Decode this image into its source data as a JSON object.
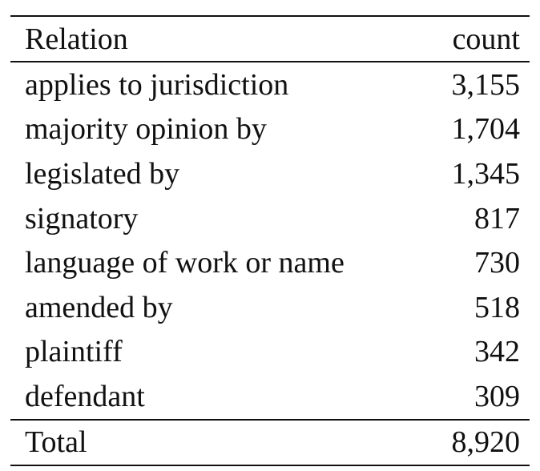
{
  "table": {
    "headers": [
      "Relation",
      "count"
    ],
    "rows": [
      [
        "applies to jurisdiction",
        "3,155"
      ],
      [
        "majority opinion by",
        "1,704"
      ],
      [
        "legislated by",
        "1,345"
      ],
      [
        "signatory",
        "817"
      ],
      [
        "language of work or name",
        "730"
      ],
      [
        "amended by",
        "518"
      ],
      [
        "plaintiff",
        "342"
      ],
      [
        "defendant",
        "309"
      ]
    ],
    "total": [
      "Total",
      "8,920"
    ]
  }
}
